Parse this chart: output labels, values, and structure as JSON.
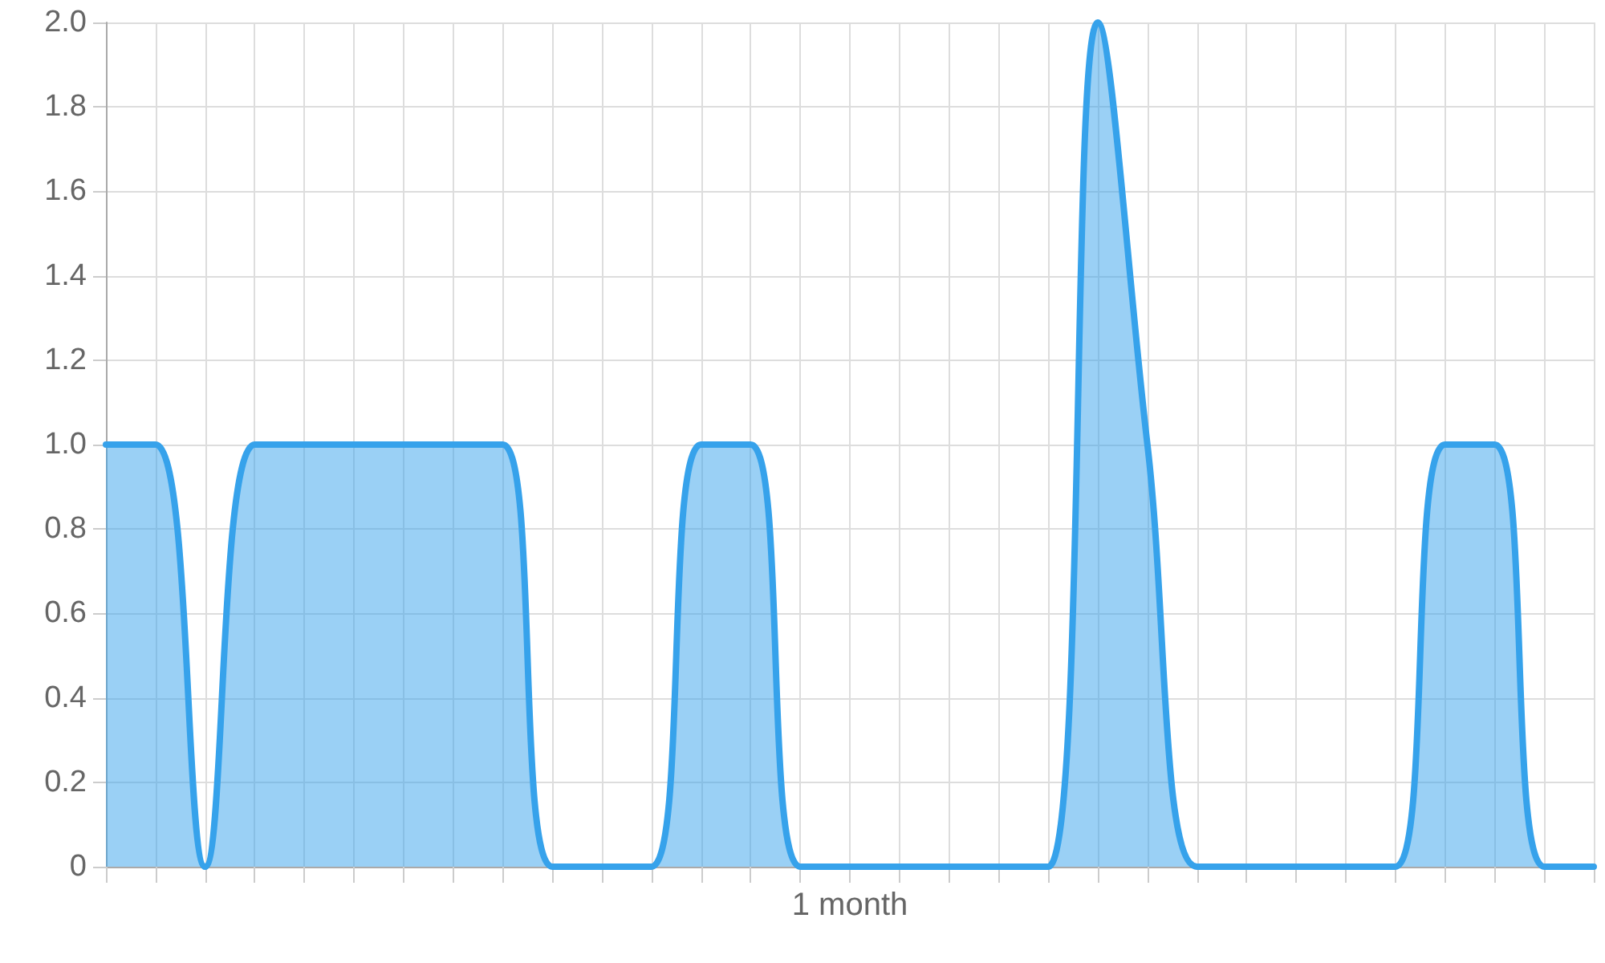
{
  "chart_data": {
    "type": "area",
    "categories": [
      null,
      null,
      null,
      null,
      null,
      null,
      null,
      null,
      null,
      null,
      null,
      null,
      null,
      null,
      null,
      "1 month",
      null,
      null,
      null,
      null,
      null,
      null,
      null,
      null,
      null,
      null,
      null,
      null,
      null,
      null,
      null
    ],
    "series": [
      {
        "color": "#36a2eb",
        "values": [
          1,
          1,
          0,
          1,
          1,
          1,
          1,
          1,
          1,
          0,
          0,
          0,
          1,
          1,
          0,
          0,
          0,
          0,
          0,
          0,
          2,
          1,
          0,
          0,
          0,
          0,
          0,
          1,
          1,
          0,
          0
        ]
      }
    ],
    "ylim": [
      0,
      2
    ],
    "yticks": [
      0,
      0.2,
      0.4,
      0.6,
      0.8,
      {
        "value": 1,
        "label": "1.0"
      },
      1.2,
      1.4,
      1.6,
      1.8,
      {
        "value": 2,
        "label": "2.0"
      }
    ],
    "grid": true,
    "marker": "none",
    "line_style": "solid"
  }
}
